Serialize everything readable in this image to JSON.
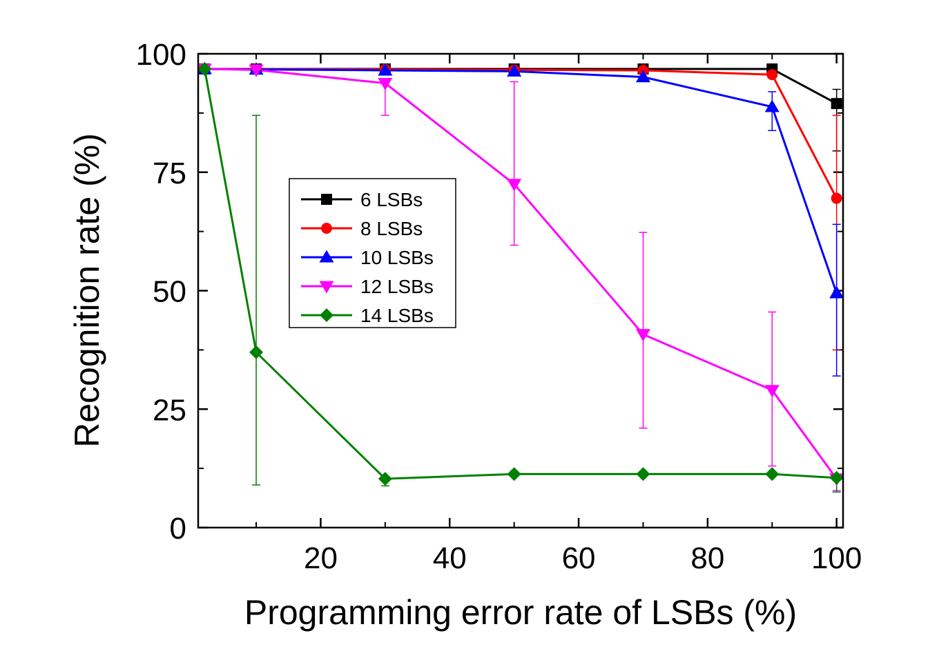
{
  "chart_data": {
    "type": "line",
    "title": "",
    "xlabel": "Programming error rate of LSBs (%)",
    "ylabel": "Recognition rate (%)",
    "xlim": [
      1,
      101
    ],
    "ylim": [
      0,
      100
    ],
    "xticks": [
      20,
      40,
      60,
      80,
      100
    ],
    "yticks": [
      0,
      25,
      50,
      75,
      100
    ],
    "legend_position": "center-left",
    "series": [
      {
        "name": "6 LSBs",
        "color": "#000000",
        "marker": "square",
        "x": [
          2,
          10,
          30,
          50,
          70,
          90,
          100
        ],
        "y": [
          96.8,
          96.8,
          96.8,
          96.8,
          96.8,
          96.8,
          89.5
        ],
        "err_low": [
          0,
          0,
          0,
          0,
          0,
          0,
          10
        ],
        "err_high": [
          0,
          0,
          0,
          0,
          0,
          0,
          3
        ]
      },
      {
        "name": "8 LSBs",
        "color": "#ff0000",
        "marker": "circle",
        "x": [
          2,
          10,
          30,
          50,
          70,
          90,
          100
        ],
        "y": [
          96.8,
          96.8,
          96.7,
          96.6,
          96.5,
          95.6,
          69.5
        ],
        "err_low": [
          0,
          0,
          0,
          0,
          0,
          0,
          32
        ],
        "err_high": [
          0,
          0,
          0,
          0,
          0,
          0,
          17.5
        ]
      },
      {
        "name": "10 LSBs",
        "color": "#0000ff",
        "marker": "triangle-up",
        "x": [
          2,
          10,
          30,
          50,
          70,
          90,
          100
        ],
        "y": [
          96.8,
          96.7,
          96.5,
          96.3,
          95.1,
          88.8,
          49.5
        ],
        "err_low": [
          0,
          0,
          0,
          0,
          0,
          5,
          17.5
        ],
        "err_high": [
          0,
          0,
          0,
          0,
          0,
          3.2,
          14.5
        ]
      },
      {
        "name": "12 LSBs",
        "color": "#ff00ff",
        "marker": "triangle-down",
        "x": [
          2,
          10,
          30,
          50,
          70,
          90,
          100
        ],
        "y": [
          96.8,
          96.6,
          93.8,
          72.5,
          40.8,
          29.0,
          10.3
        ],
        "err_low": [
          0,
          0,
          6.8,
          12.9,
          19.8,
          16.0,
          2.5
        ],
        "err_high": [
          0,
          0,
          0,
          21.6,
          21.5,
          16.5,
          0
        ]
      },
      {
        "name": "14 LSBs",
        "color": "#008000",
        "marker": "diamond",
        "x": [
          2,
          10,
          30,
          50,
          70,
          90,
          100
        ],
        "y": [
          96.8,
          37.0,
          10.3,
          11.3,
          11.3,
          11.3,
          10.5
        ],
        "err_low": [
          0,
          28,
          1.5,
          0,
          0,
          0,
          3
        ],
        "err_high": [
          0,
          50,
          0,
          0,
          0,
          0,
          0
        ]
      }
    ]
  }
}
